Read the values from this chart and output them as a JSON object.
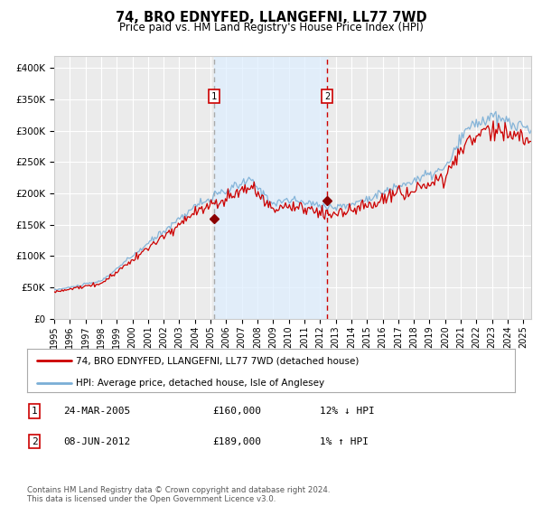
{
  "title": "74, BRO EDNYFED, LLANGEFNI, LL77 7WD",
  "subtitle": "Price paid vs. HM Land Registry's House Price Index (HPI)",
  "ylim": [
    0,
    420000
  ],
  "yticks": [
    0,
    50000,
    100000,
    150000,
    200000,
    250000,
    300000,
    350000,
    400000
  ],
  "ytick_labels": [
    "£0",
    "£50K",
    "£100K",
    "£150K",
    "£200K",
    "£250K",
    "£300K",
    "£350K",
    "£400K"
  ],
  "xlim_start": 1995.0,
  "xlim_end": 2025.5,
  "hpi_color": "#7aaed6",
  "price_color": "#cc0000",
  "sale1_date": 2005.23,
  "sale1_price": 160000,
  "sale2_date": 2012.44,
  "sale2_price": 189000,
  "vline1_color": "#aaaaaa",
  "vline2_color": "#cc0000",
  "shade_color": "#ddeeff",
  "shade_alpha": 0.7,
  "legend_price_label": "74, BRO EDNYFED, LLANGEFNI, LL77 7WD (detached house)",
  "legend_hpi_label": "HPI: Average price, detached house, Isle of Anglesey",
  "footnote": "Contains HM Land Registry data © Crown copyright and database right 2024.\nThis data is licensed under the Open Government Licence v3.0.",
  "background_color": "#ffffff",
  "plot_bg_color": "#ebebeb",
  "grid_color": "#ffffff",
  "ann1_date": "24-MAR-2005",
  "ann1_price": "£160,000",
  "ann1_hpi": "12% ↓ HPI",
  "ann2_date": "08-JUN-2012",
  "ann2_price": "£189,000",
  "ann2_hpi": "1% ↑ HPI"
}
